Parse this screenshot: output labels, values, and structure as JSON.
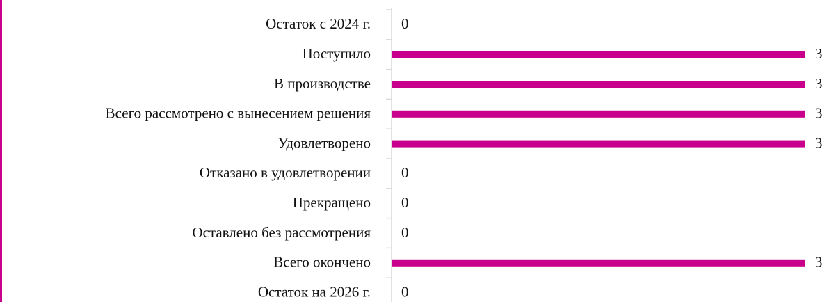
{
  "chart_data": {
    "type": "hbar",
    "color": "#c8008c",
    "categories": [
      "Остаток с 2024 г.",
      "Поступило",
      "В производстве",
      "Всего рассмотрено с вынесением решения",
      "Удовлетворено",
      "Отказано в удовлетворении",
      "Прекращено",
      "Оставлено без рассмотрения",
      "Всего окончено",
      "Остаток на 2026 г."
    ],
    "values": [
      0,
      3,
      3,
      3,
      3,
      0,
      0,
      0,
      3,
      0
    ]
  }
}
